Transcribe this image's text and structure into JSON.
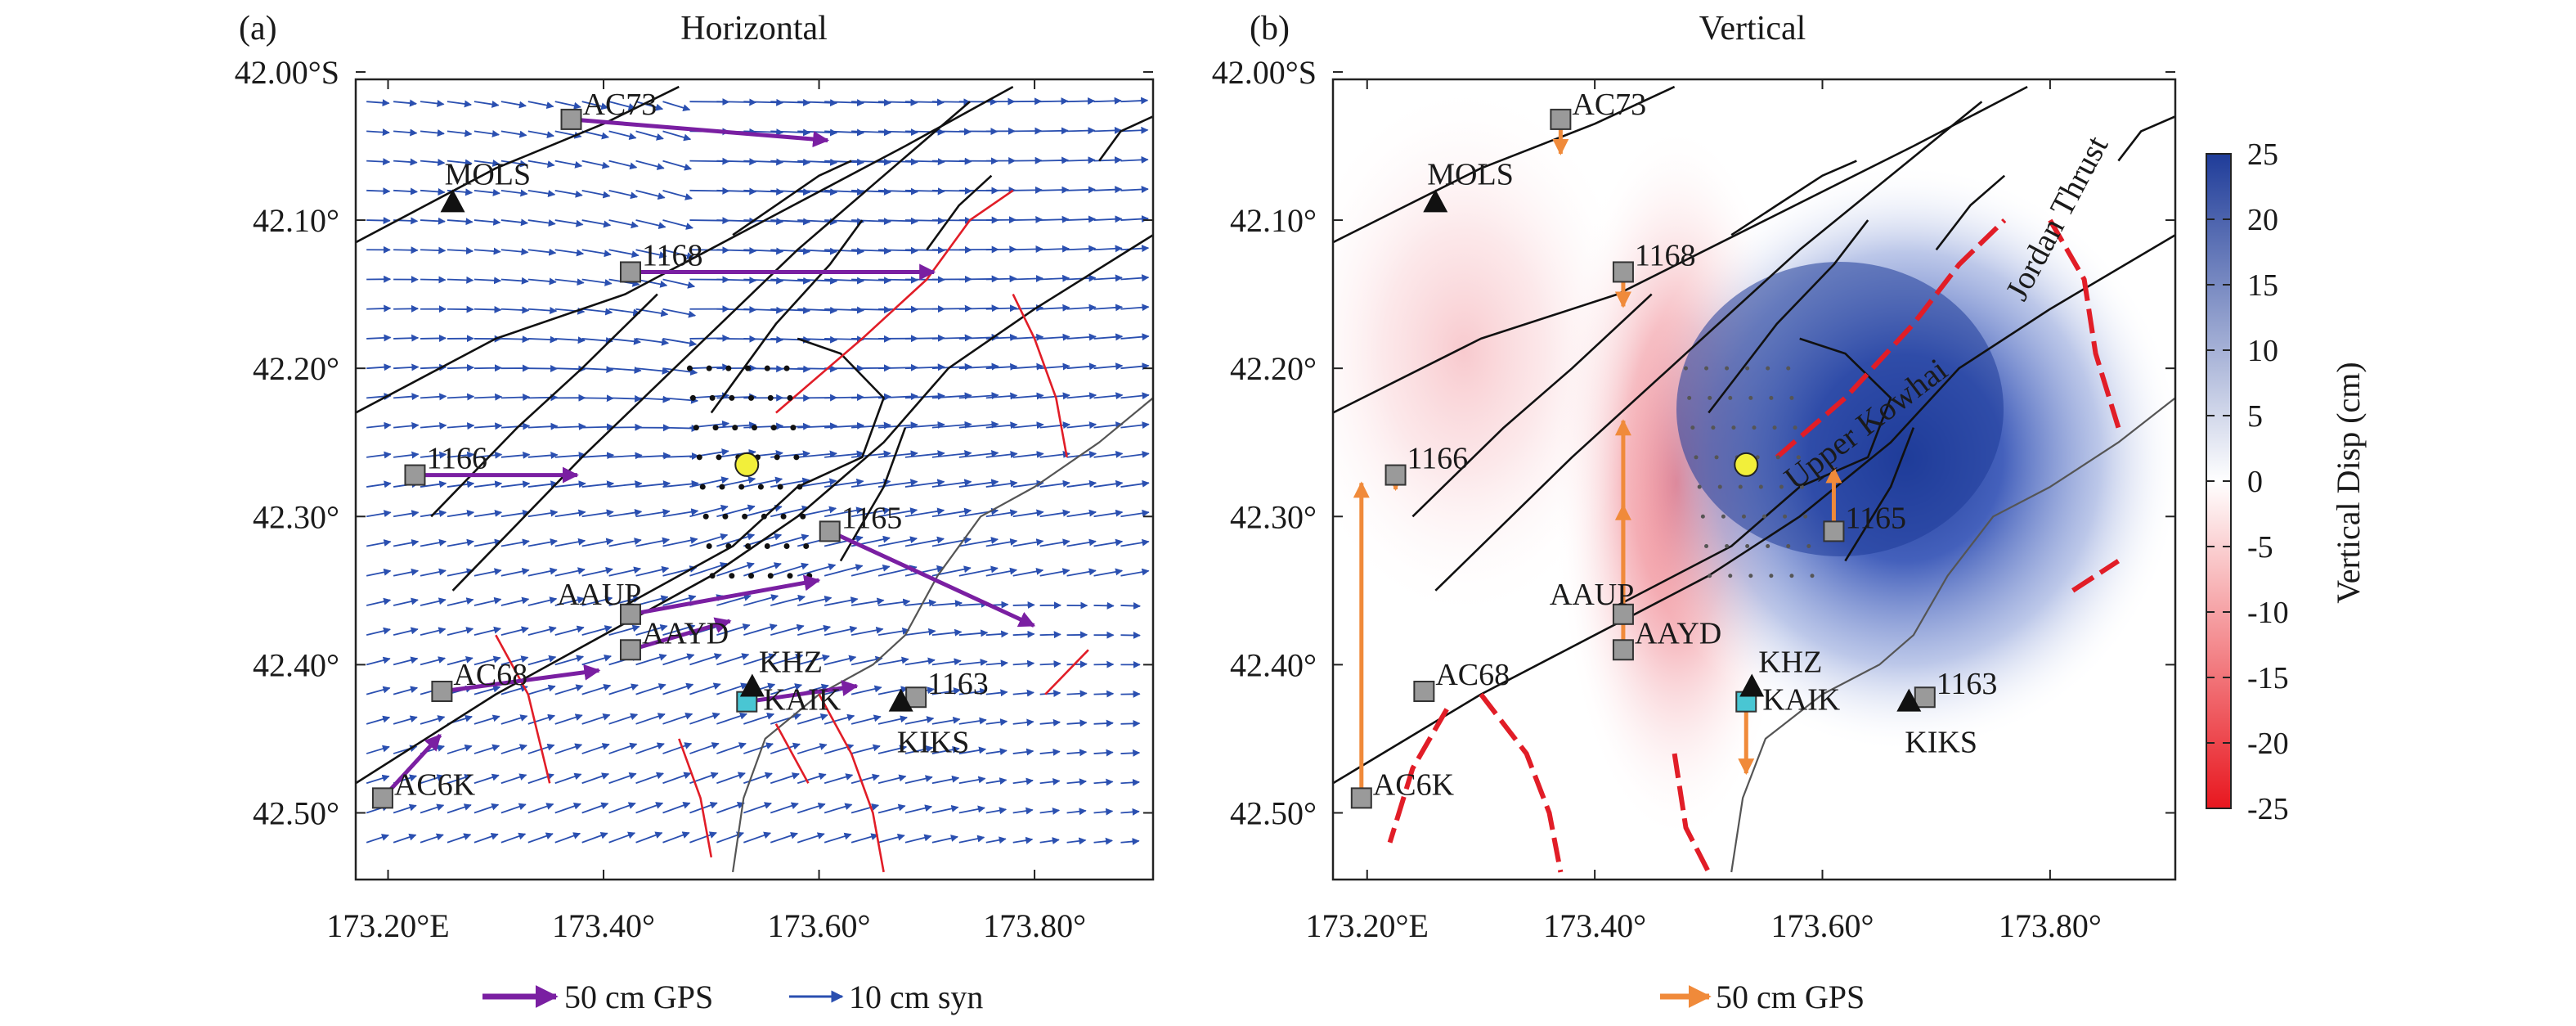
{
  "panels": [
    {
      "label": "(a)",
      "title": "Horizontal",
      "legend": [
        {
          "text": "50 cm GPS",
          "color": "#7a1fa2"
        },
        {
          "text": "10 cm syn",
          "color": "#2a4fb0"
        }
      ]
    },
    {
      "label": "(b)",
      "title": "Vertical",
      "legend": [
        {
          "text": "50 cm GPS",
          "color": "#f08a3a"
        }
      ]
    }
  ],
  "axes": {
    "x_ticks": [
      "173.20°E",
      "173.40°",
      "173.60°",
      "173.80°"
    ],
    "y_ticks": [
      "42.00°S",
      "42.10°",
      "42.20°",
      "42.30°",
      "42.40°",
      "42.50°"
    ],
    "xlim": [
      173.17,
      173.91
    ],
    "ylim": [
      -42.545,
      -42.005
    ]
  },
  "stations": [
    {
      "name": "AC73",
      "lon": 173.37,
      "lat": -42.032,
      "type": "gps"
    },
    {
      "name": "1168",
      "lon": 173.425,
      "lat": -42.135,
      "type": "gps"
    },
    {
      "name": "1166",
      "lon": 173.225,
      "lat": -42.272,
      "type": "gps"
    },
    {
      "name": "1165",
      "lon": 173.61,
      "lat": -42.31,
      "type": "gps"
    },
    {
      "name": "AAUP",
      "lon": 173.425,
      "lat": -42.366,
      "type": "gps"
    },
    {
      "name": "AAYD",
      "lon": 173.425,
      "lat": -42.39,
      "type": "gps"
    },
    {
      "name": "AC68",
      "lon": 173.25,
      "lat": -42.418,
      "type": "gps"
    },
    {
      "name": "AC6K",
      "lon": 173.195,
      "lat": -42.49,
      "type": "gps"
    },
    {
      "name": "1163",
      "lon": 173.69,
      "lat": -42.422,
      "type": "gps"
    },
    {
      "name": "KAIK",
      "lon": 173.533,
      "lat": -42.425,
      "type": "cyan"
    },
    {
      "name": "MOLS",
      "lon": 173.26,
      "lat": -42.088,
      "type": "seismic"
    },
    {
      "name": "KHZ",
      "lon": 173.538,
      "lat": -42.415,
      "type": "seismic"
    },
    {
      "name": "KIKS",
      "lon": 173.676,
      "lat": -42.425,
      "type": "seismic"
    }
  ],
  "epicenter": {
    "lon": 173.533,
    "lat": -42.265
  },
  "gps_horizontal_cm": [
    {
      "station": "AC73",
      "east": 98,
      "north": -8
    },
    {
      "station": "1168",
      "east": 116,
      "north": 0
    },
    {
      "station": "1166",
      "east": 62,
      "north": 0
    },
    {
      "station": "1165",
      "east": 78,
      "north": -36
    },
    {
      "station": "AAUP",
      "east": 72,
      "north": 13
    },
    {
      "station": "AAYD",
      "east": 38,
      "north": 11
    },
    {
      "station": "AC68",
      "east": 60,
      "north": 8
    },
    {
      "station": "AC6K",
      "east": 22,
      "north": 24
    },
    {
      "station": "KAIK",
      "east": 42,
      "north": 6
    }
  ],
  "gps_vertical_cm": [
    {
      "station": "AC73",
      "up": -12
    },
    {
      "station": "1168",
      "up": -12
    },
    {
      "station": "1166",
      "up": -5
    },
    {
      "station": "1165",
      "up": 22
    },
    {
      "station": "AAUP",
      "up": 38
    },
    {
      "station": "AAYD",
      "up": 80
    },
    {
      "station": "AC6K",
      "up": 110
    },
    {
      "station": "KAIK",
      "up": -25
    },
    {
      "station": "AC68",
      "up": -2
    }
  ],
  "annotations": [
    {
      "text": "Upper Kowhai",
      "rotation": -37
    },
    {
      "text": "Jordan Thrust",
      "rotation": -62
    }
  ],
  "colorbar": {
    "label": "Vertical Disp (cm)",
    "ticks": [
      "25",
      "20",
      "15",
      "10",
      "5",
      "0",
      "-5",
      "-10",
      "-15",
      "-20",
      "-25"
    ],
    "range": [
      -25,
      25
    ],
    "colors": {
      "positive": "#1f3c99",
      "zero": "#ffffff",
      "negative": "#e8171f"
    }
  },
  "colors": {
    "fault_black": "#111111",
    "fault_red": "#e11d27",
    "coast": "#555555",
    "gps_marker": "#9a9a9a",
    "epicenter": "#f2ef3a"
  }
}
